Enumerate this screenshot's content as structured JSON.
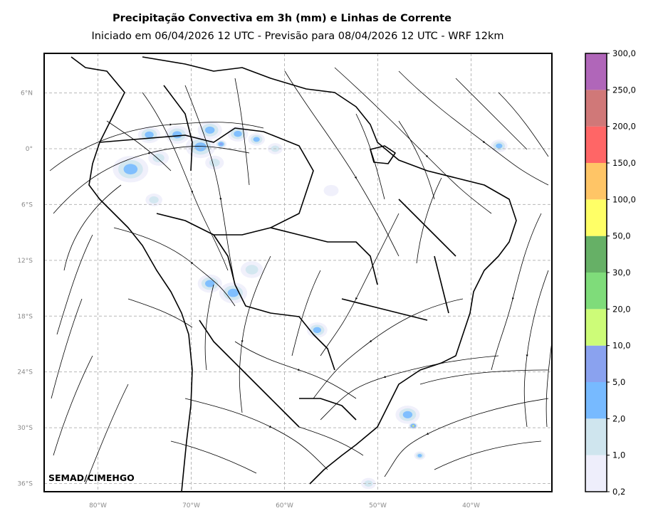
{
  "chart_data": {
    "type": "heatmap",
    "title": "Precipitação Convectiva em 3h (mm) e Linhas de Corrente",
    "subtitle": "Iniciado em 06/04/2026 12 UTC - Previsão para 08/04/2026 12 UTC - WRF 12km",
    "credit": "SEMAD/CIMEHGO",
    "grid": true,
    "x_ticks": [
      {
        "lon": -80,
        "label": "80°W"
      },
      {
        "lon": -70,
        "label": "70°W"
      },
      {
        "lon": -60,
        "label": "60°W"
      },
      {
        "lon": -50,
        "label": "50°W"
      },
      {
        "lon": -40,
        "label": "40°W"
      }
    ],
    "y_ticks": [
      {
        "lat": 6,
        "label": "6°N"
      },
      {
        "lat": 0,
        "label": "0°"
      },
      {
        "lat": -6,
        "label": "6°S"
      },
      {
        "lat": -12,
        "label": "12°S"
      },
      {
        "lat": -18,
        "label": "18°S"
      },
      {
        "lat": -24,
        "label": "24°S"
      },
      {
        "lat": -30,
        "label": "30°S"
      },
      {
        "lat": -36,
        "label": "36°S"
      }
    ],
    "colorbar": {
      "labels": [
        "0,2",
        "1,0",
        "2,0",
        "5,0",
        "10,0",
        "20,0",
        "30,0",
        "50,0",
        "100,0",
        "150,0",
        "200,0",
        "250,0",
        "300,0"
      ],
      "colors": [
        "#eeeefb",
        "#cfe5ee",
        "#77baff",
        "#8aa2ef",
        "#cdfc78",
        "#7fdc7a",
        "#66b066",
        "#ffff66",
        "#ffc566",
        "#ff6666",
        "#d07878",
        "#b066b9"
      ]
    },
    "precip_patches": [
      {
        "lon": -76.5,
        "lat": -2.2,
        "size": 1.9,
        "level": 2
      },
      {
        "lon": -74.5,
        "lat": 1.5,
        "size": 1.2,
        "level": 2
      },
      {
        "lon": -73.5,
        "lat": -1.0,
        "size": 1.1,
        "level": 1
      },
      {
        "lon": -71.5,
        "lat": 1.5,
        "size": 1.3,
        "level": 2
      },
      {
        "lon": -69.0,
        "lat": 0.2,
        "size": 1.6,
        "level": 2
      },
      {
        "lon": -68.0,
        "lat": 2.0,
        "size": 1.3,
        "level": 2
      },
      {
        "lon": -65.0,
        "lat": 1.6,
        "size": 1.1,
        "level": 2
      },
      {
        "lon": -67.5,
        "lat": -1.5,
        "size": 1.0,
        "level": 1
      },
      {
        "lon": -63.0,
        "lat": 1.0,
        "size": 0.9,
        "level": 2
      },
      {
        "lon": -61.0,
        "lat": 0.0,
        "size": 0.8,
        "level": 1
      },
      {
        "lon": -66.8,
        "lat": 0.5,
        "size": 0.6,
        "level": 3
      },
      {
        "lon": -68.0,
        "lat": -14.5,
        "size": 1.3,
        "level": 2
      },
      {
        "lon": -65.5,
        "lat": -15.5,
        "size": 1.5,
        "level": 2
      },
      {
        "lon": -63.5,
        "lat": -13.0,
        "size": 1.2,
        "level": 1
      },
      {
        "lon": -56.5,
        "lat": -19.5,
        "size": 1.1,
        "level": 2
      },
      {
        "lon": -74.0,
        "lat": -5.5,
        "size": 0.9,
        "level": 1
      },
      {
        "lon": -46.8,
        "lat": -28.6,
        "size": 1.3,
        "level": 2
      },
      {
        "lon": -46.2,
        "lat": -29.8,
        "size": 0.5,
        "level": 4
      },
      {
        "lon": -45.5,
        "lat": -33.0,
        "size": 0.6,
        "level": 2
      },
      {
        "lon": -37.0,
        "lat": 0.3,
        "size": 0.9,
        "level": 2
      },
      {
        "lon": -55.0,
        "lat": -4.5,
        "size": 0.8,
        "level": 0
      },
      {
        "lon": -51.0,
        "lat": -36.0,
        "size": 0.8,
        "level": 1
      }
    ]
  }
}
